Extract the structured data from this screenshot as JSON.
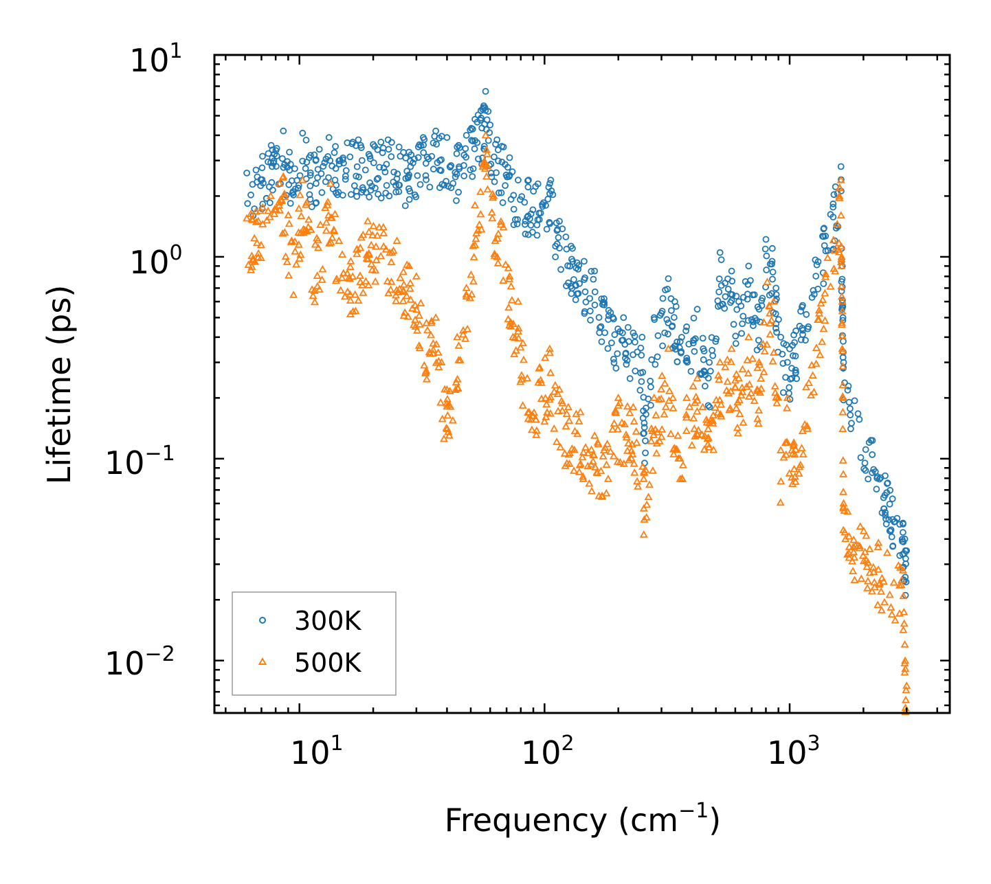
{
  "chart_data": {
    "type": "scatter",
    "title": "",
    "xlabel": "Frequency (cm",
    "xlabel_sup": "−1",
    "xlabel_close": ")",
    "ylabel": "Lifetime (ps)",
    "xscale": "log",
    "yscale": "log",
    "xlim": [
      4.5,
      4500
    ],
    "ylim": [
      0.0055,
      10
    ],
    "xticks": [
      {
        "base": "10",
        "exp": "1"
      },
      {
        "base": "10",
        "exp": "2"
      },
      {
        "base": "10",
        "exp": "3"
      }
    ],
    "yticks": [
      {
        "base": "10",
        "exp": "1"
      },
      {
        "base": "10",
        "exp": "0"
      },
      {
        "base": "10",
        "exp": "−1"
      },
      {
        "base": "10",
        "exp": "−2"
      }
    ],
    "legend": {
      "position": "lower-left",
      "entries": [
        "300K",
        "500K"
      ]
    },
    "colors": {
      "300K": "#1f77b4",
      "500K": "#ff7f0e"
    },
    "series": [
      {
        "name": "300K",
        "marker": "circle",
        "points": [
          [
            6.1,
            2.6
          ],
          [
            8.6,
            4.2
          ],
          [
            9.1,
            3.3
          ],
          [
            10.3,
            4.1
          ],
          [
            11.5,
            3.2
          ],
          [
            13.2,
            3.9
          ],
          [
            16.5,
            3.7
          ],
          [
            17.4,
            3.8
          ],
          [
            20.0,
            3.6
          ],
          [
            21.5,
            3.7
          ],
          [
            23.0,
            3.8
          ],
          [
            25.5,
            3.5
          ],
          [
            28,
            3.3
          ],
          [
            32,
            3.9
          ],
          [
            36,
            4.2
          ],
          [
            40,
            3.9
          ],
          [
            44,
            3.5
          ],
          [
            48,
            4.0
          ],
          [
            52,
            4.8
          ],
          [
            55,
            5.3
          ],
          [
            56.5,
            5.6
          ],
          [
            57.5,
            6.6
          ],
          [
            60,
            4.5
          ],
          [
            64,
            3.8
          ],
          [
            68,
            3.5
          ],
          [
            72,
            3.1
          ],
          [
            78,
            2.4
          ],
          [
            86,
            2.4
          ],
          [
            94,
            2.3
          ],
          [
            106,
            2.4
          ],
          [
            115,
            1.5
          ],
          [
            130,
            1.1
          ],
          [
            145,
            0.95
          ],
          [
            160,
            0.85
          ],
          [
            175,
            0.62
          ],
          [
            190,
            0.5
          ],
          [
            210,
            0.5
          ],
          [
            230,
            0.42
          ],
          [
            250,
            0.4
          ],
          [
            255,
            0.15
          ],
          [
            280,
            0.5
          ],
          [
            320,
            0.78
          ],
          [
            340,
            0.6
          ],
          [
            380,
            0.45
          ],
          [
            420,
            0.55
          ],
          [
            470,
            0.3
          ],
          [
            520,
            1.05
          ],
          [
            580,
            0.85
          ],
          [
            620,
            0.6
          ],
          [
            680,
            0.9
          ],
          [
            750,
            0.55
          ],
          [
            800,
            1.22
          ],
          [
            850,
            1.1
          ],
          [
            880,
            0.7
          ],
          [
            920,
            0.4
          ],
          [
            1000,
            0.35
          ],
          [
            1040,
            0.41
          ],
          [
            1620,
            2.8
          ],
          [
            1630,
            1.1
          ],
          [
            1640,
            0.9
          ],
          [
            1650,
            0.5
          ],
          [
            1660,
            0.3
          ],
          [
            2900,
            0.048
          ],
          [
            2950,
            0.04
          ],
          [
            3000,
            0.035
          ]
        ]
      },
      {
        "name": "500K",
        "marker": "triangle",
        "points": [
          [
            6.1,
            1.55
          ],
          [
            8.6,
            2.5
          ],
          [
            9.3,
            1.2
          ],
          [
            10.3,
            2.4
          ],
          [
            11.6,
            1.15
          ],
          [
            13.4,
            2.3
          ],
          [
            14.5,
            1.2
          ],
          [
            16.2,
            0.95
          ],
          [
            19.0,
            1.5
          ],
          [
            22.0,
            1.4
          ],
          [
            25.0,
            1.2
          ],
          [
            28.0,
            0.9
          ],
          [
            30.0,
            0.8
          ],
          [
            33.0,
            0.47
          ],
          [
            36.0,
            0.5
          ],
          [
            38.0,
            0.3
          ],
          [
            40.0,
            0.22
          ],
          [
            44.0,
            0.4
          ],
          [
            48.0,
            0.7
          ],
          [
            52.0,
            1.8
          ],
          [
            56.0,
            2.8
          ],
          [
            57.5,
            4.0
          ],
          [
            62,
            2.0
          ],
          [
            68,
            1.4
          ],
          [
            72,
            0.8
          ],
          [
            78,
            0.6
          ],
          [
            85,
            0.25
          ],
          [
            95,
            0.28
          ],
          [
            105,
            0.35
          ],
          [
            115,
            0.22
          ],
          [
            125,
            0.18
          ],
          [
            140,
            0.17
          ],
          [
            160,
            0.13
          ],
          [
            175,
            0.11
          ],
          [
            200,
            0.2
          ],
          [
            230,
            0.18
          ],
          [
            255,
            0.085
          ],
          [
            280,
            0.2
          ],
          [
            320,
            0.35
          ],
          [
            350,
            0.13
          ],
          [
            380,
            0.2
          ],
          [
            420,
            0.25
          ],
          [
            470,
            0.15
          ],
          [
            520,
            0.3
          ],
          [
            580,
            0.35
          ],
          [
            620,
            0.25
          ],
          [
            680,
            0.4
          ],
          [
            750,
            0.3
          ],
          [
            810,
            0.75
          ],
          [
            860,
            0.6
          ],
          [
            920,
            0.11
          ],
          [
            980,
            0.2
          ],
          [
            1040,
            0.12
          ],
          [
            1620,
            2.4
          ],
          [
            1630,
            1.0
          ],
          [
            1640,
            0.6
          ],
          [
            1650,
            0.2
          ],
          [
            1660,
            0.06
          ],
          [
            2900,
            0.028
          ],
          [
            2950,
            0.012
          ],
          [
            3000,
            0.0075
          ]
        ]
      }
    ]
  }
}
